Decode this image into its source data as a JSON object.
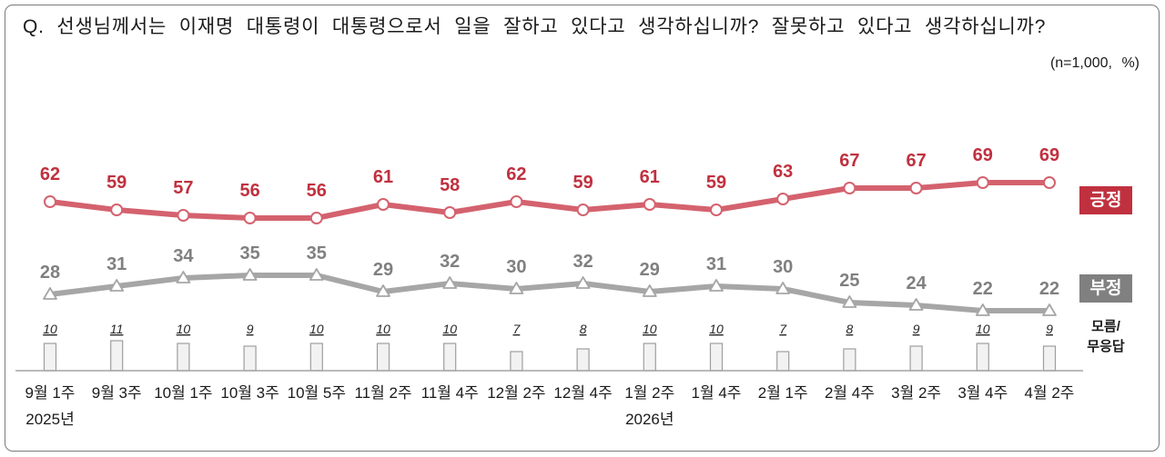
{
  "chart_data": {
    "type": "line",
    "title": "Q. 선생님께서는 이재명 대통령이 대통령으로서 일을 잘하고 있다고 생각하십니까? 잘못하고 있다고 생각하십니까?",
    "subtitle": "(n=1,000, %)",
    "categories": [
      "9월 1주",
      "9월 3주",
      "10월 1주",
      "10월 3주",
      "10월 5주",
      "11월 2주",
      "11월 4주",
      "12월 2주",
      "12월 4주",
      "1월 2주",
      "1월 4주",
      "2월 1주",
      "2월 4주",
      "3월 2주",
      "3월 4주",
      "4월 2주"
    ],
    "year_labels": [
      {
        "category_index": 0,
        "label": "2025년"
      },
      {
        "category_index": 9,
        "label": "2026년"
      }
    ],
    "ylim": [
      0,
      100
    ],
    "grid": false,
    "legend": "right",
    "series": [
      {
        "name": "긍정",
        "type": "line",
        "marker": "circle",
        "color": "#d4626e",
        "label_color": "#c0313f",
        "values": [
          62,
          59,
          57,
          56,
          56,
          61,
          58,
          62,
          59,
          61,
          59,
          63,
          67,
          67,
          69,
          69
        ]
      },
      {
        "name": "부정",
        "type": "line",
        "marker": "triangle",
        "color": "#a6a6a6",
        "label_color": "#808080",
        "values": [
          28,
          31,
          34,
          35,
          35,
          29,
          32,
          30,
          32,
          29,
          31,
          30,
          25,
          24,
          22,
          22
        ]
      },
      {
        "name": "모름/\n무응답",
        "type": "bar",
        "color": "#f2f2f2",
        "border_color": "#9e9e9e",
        "values": [
          10,
          11,
          10,
          9,
          10,
          10,
          10,
          7,
          8,
          10,
          10,
          7,
          8,
          9,
          10,
          9
        ]
      }
    ]
  }
}
